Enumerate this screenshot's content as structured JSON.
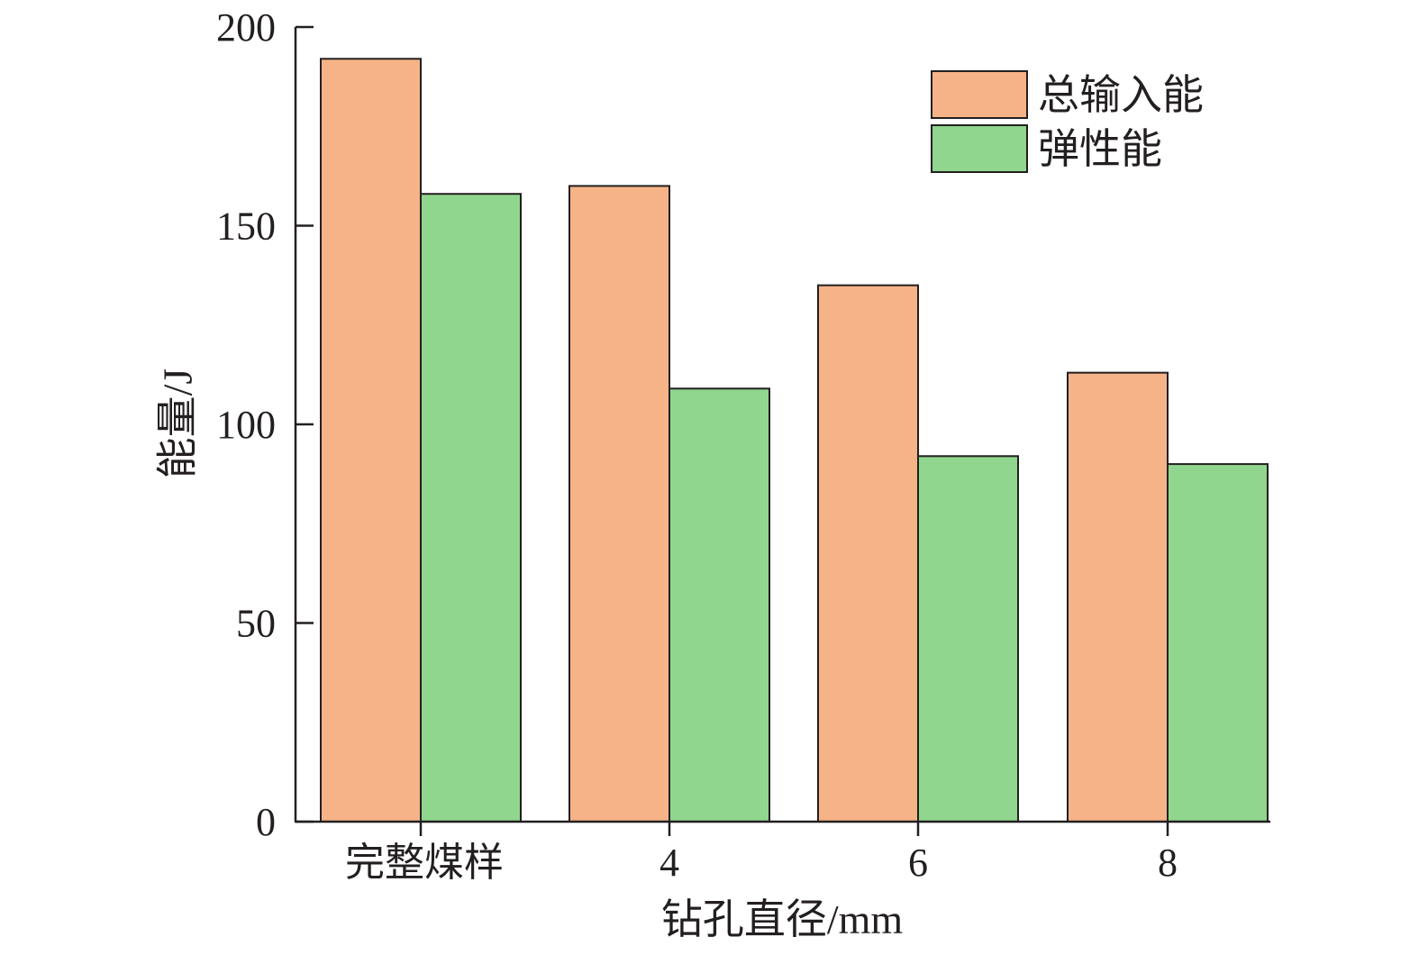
{
  "chart_data": {
    "type": "bar",
    "title": "",
    "xlabel": "钻孔直径/mm",
    "ylabel": "能量/J",
    "categories": [
      "完整煤样",
      "4",
      "6",
      "8"
    ],
    "ylim": [
      0,
      200
    ],
    "yticks": [
      0,
      50,
      100,
      150,
      200
    ],
    "grid": false,
    "legend_position": "top-right",
    "series": [
      {
        "name": "总输入能",
        "color": "#f5b387",
        "values": [
          192,
          160,
          135,
          113
        ]
      },
      {
        "name": "弹性能",
        "color": "#90d68e",
        "values": [
          158,
          109,
          92,
          90
        ]
      }
    ]
  }
}
